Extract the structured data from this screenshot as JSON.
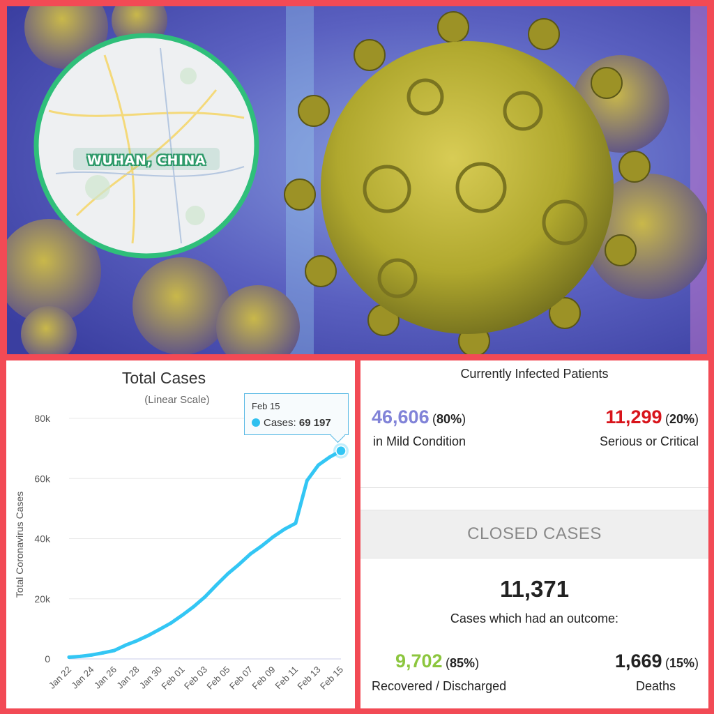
{
  "illustration": {
    "map_label": "WUHAN, CHINA",
    "colors": {
      "virus": "#c6b733",
      "background": "#4b5ab0",
      "map_ring": "#2fbf7a"
    }
  },
  "chart": {
    "title": "Total Cases",
    "subtitle": "(Linear Scale)",
    "tooltip": {
      "date": "Feb 15",
      "label": "Cases:",
      "value": "69 197"
    }
  },
  "chart_data": {
    "type": "line",
    "title": "Total Cases",
    "subtitle": "(Linear Scale)",
    "xlabel": "",
    "ylabel": "Total Coronavirus Cases",
    "ylim": [
      0,
      80000
    ],
    "yticks": [
      "0",
      "20k",
      "40k",
      "60k",
      "80k"
    ],
    "xticks": [
      "Jan 22",
      "Jan 24",
      "Jan 26",
      "Jan 28",
      "Jan 30",
      "Feb 01",
      "Feb 03",
      "Feb 05",
      "Feb 07",
      "Feb 09",
      "Feb 11",
      "Feb 13",
      "Feb 15"
    ],
    "grid": true,
    "line_color": "#33c6f4",
    "x": [
      "Jan 22",
      "Jan 23",
      "Jan 24",
      "Jan 25",
      "Jan 26",
      "Jan 27",
      "Jan 28",
      "Jan 29",
      "Jan 30",
      "Jan 31",
      "Feb 01",
      "Feb 02",
      "Feb 03",
      "Feb 04",
      "Feb 05",
      "Feb 06",
      "Feb 07",
      "Feb 08",
      "Feb 09",
      "Feb 10",
      "Feb 11",
      "Feb 12",
      "Feb 13",
      "Feb 14",
      "Feb 15"
    ],
    "series": [
      {
        "values": [
          580,
          845,
          1317,
          2015,
          2800,
          4581,
          6058,
          7813,
          9823,
          11950,
          14553,
          17391,
          20630,
          24545,
          28266,
          31439,
          34876,
          37552,
          40553,
          43099,
          45134,
          59287,
          64438,
          67100,
          69197
        ]
      }
    ]
  },
  "stats": {
    "heading": "Currently Infected Patients",
    "mild": {
      "value": "46,606",
      "pct": "80%",
      "label": "in Mild Condition"
    },
    "critical": {
      "value": "11,299",
      "pct": "20%",
      "label": "Serious or Critical"
    },
    "closed_heading": "CLOSED CASES",
    "closed_total": "11,371",
    "closed_sub": "Cases which had an outcome:",
    "recovered": {
      "value": "9,702",
      "pct": "85%",
      "label": "Recovered / Discharged"
    },
    "deaths": {
      "value": "1,669",
      "pct": "15%",
      "label": "Deaths"
    },
    "colors": {
      "mild": "#8183d8",
      "critical": "#d8141b",
      "recovered": "#8cc63e"
    }
  }
}
